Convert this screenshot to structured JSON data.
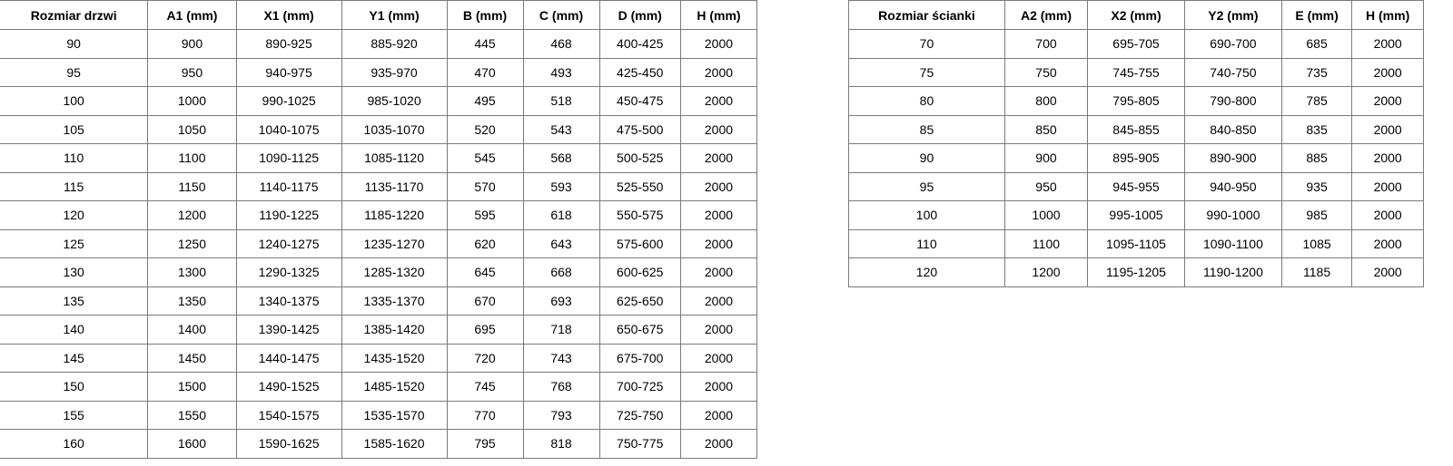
{
  "door_table": {
    "headers": [
      "Rozmiar drzwi",
      "A1 (mm)",
      "X1 (mm)",
      "Y1 (mm)",
      "B (mm)",
      "C (mm)",
      "D (mm)",
      "H (mm)"
    ],
    "rows": [
      [
        "90",
        "900",
        "890-925",
        "885-920",
        "445",
        "468",
        "400-425",
        "2000"
      ],
      [
        "95",
        "950",
        "940-975",
        "935-970",
        "470",
        "493",
        "425-450",
        "2000"
      ],
      [
        "100",
        "1000",
        "990-1025",
        "985-1020",
        "495",
        "518",
        "450-475",
        "2000"
      ],
      [
        "105",
        "1050",
        "1040-1075",
        "1035-1070",
        "520",
        "543",
        "475-500",
        "2000"
      ],
      [
        "110",
        "1100",
        "1090-1125",
        "1085-1120",
        "545",
        "568",
        "500-525",
        "2000"
      ],
      [
        "115",
        "1150",
        "1140-1175",
        "1135-1170",
        "570",
        "593",
        "525-550",
        "2000"
      ],
      [
        "120",
        "1200",
        "1190-1225",
        "1185-1220",
        "595",
        "618",
        "550-575",
        "2000"
      ],
      [
        "125",
        "1250",
        "1240-1275",
        "1235-1270",
        "620",
        "643",
        "575-600",
        "2000"
      ],
      [
        "130",
        "1300",
        "1290-1325",
        "1285-1320",
        "645",
        "668",
        "600-625",
        "2000"
      ],
      [
        "135",
        "1350",
        "1340-1375",
        "1335-1370",
        "670",
        "693",
        "625-650",
        "2000"
      ],
      [
        "140",
        "1400",
        "1390-1425",
        "1385-1420",
        "695",
        "718",
        "650-675",
        "2000"
      ],
      [
        "145",
        "1450",
        "1440-1475",
        "1435-1520",
        "720",
        "743",
        "675-700",
        "2000"
      ],
      [
        "150",
        "1500",
        "1490-1525",
        "1485-1520",
        "745",
        "768",
        "700-725",
        "2000"
      ],
      [
        "155",
        "1550",
        "1540-1575",
        "1535-1570",
        "770",
        "793",
        "725-750",
        "2000"
      ],
      [
        "160",
        "1600",
        "1590-1625",
        "1585-1620",
        "795",
        "818",
        "750-775",
        "2000"
      ]
    ]
  },
  "wall_table": {
    "headers": [
      "Rozmiar ścianki",
      "A2 (mm)",
      "X2 (mm)",
      "Y2 (mm)",
      "E (mm)",
      "H (mm)"
    ],
    "rows": [
      [
        "70",
        "700",
        "695-705",
        "690-700",
        "685",
        "2000"
      ],
      [
        "75",
        "750",
        "745-755",
        "740-750",
        "735",
        "2000"
      ],
      [
        "80",
        "800",
        "795-805",
        "790-800",
        "785",
        "2000"
      ],
      [
        "85",
        "850",
        "845-855",
        "840-850",
        "835",
        "2000"
      ],
      [
        "90",
        "900",
        "895-905",
        "890-900",
        "885",
        "2000"
      ],
      [
        "95",
        "950",
        "945-955",
        "940-950",
        "935",
        "2000"
      ],
      [
        "100",
        "1000",
        "995-1005",
        "990-1000",
        "985",
        "2000"
      ],
      [
        "110",
        "1100",
        "1095-1105",
        "1090-1100",
        "1085",
        "2000"
      ],
      [
        "120",
        "1200",
        "1195-1205",
        "1190-1200",
        "1185",
        "2000"
      ]
    ]
  }
}
